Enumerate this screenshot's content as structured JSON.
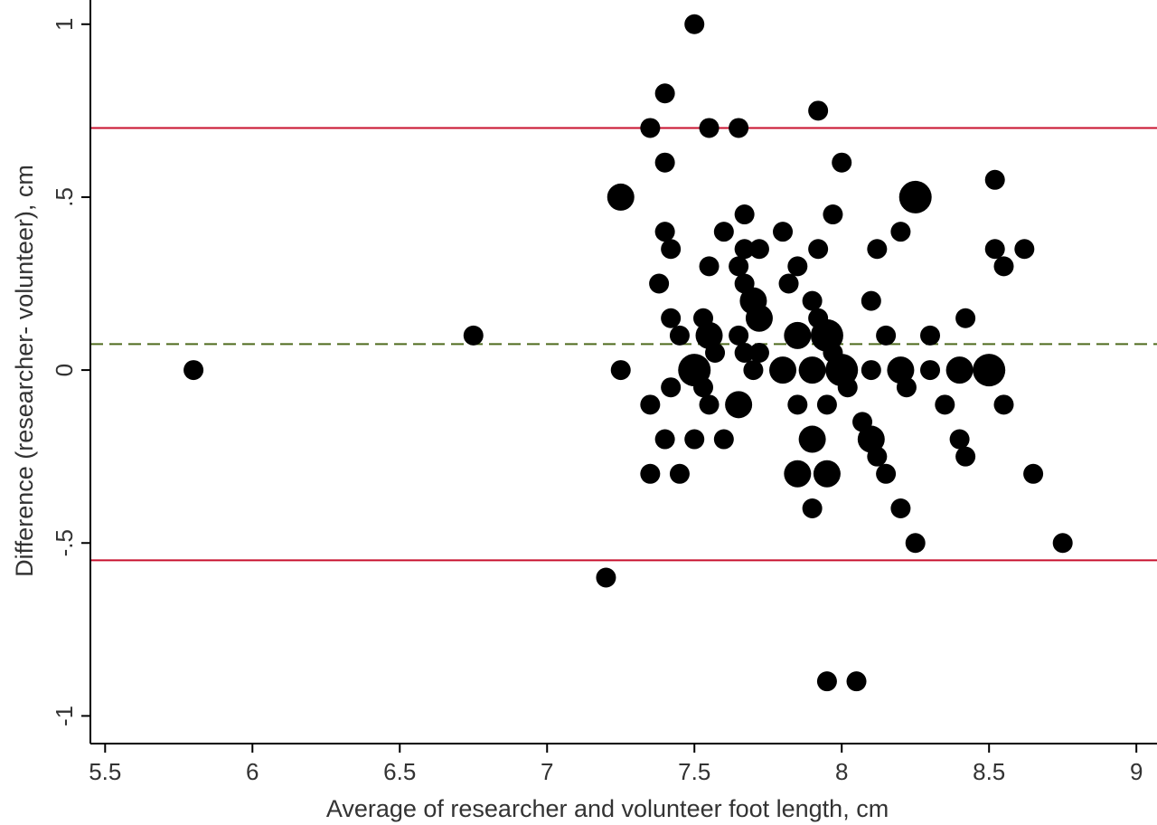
{
  "chart_data": {
    "type": "scatter",
    "title": "",
    "xlabel": "Average  of researcher  and volunteer  foot length, cm",
    "ylabel": "Difference  (researcher- volunteer), cm",
    "xlim": [
      5.45,
      9.07
    ],
    "ylim": [
      -1.08,
      1.07
    ],
    "x_ticks": [
      5.5,
      6,
      6.5,
      7,
      7.5,
      8,
      8.5,
      9
    ],
    "x_tick_labels": [
      "5.5",
      "6",
      "6.5",
      "7",
      "7.5",
      "8",
      "8.5",
      "9"
    ],
    "y_ticks": [
      1,
      0.5,
      0,
      -0.5,
      -1
    ],
    "y_tick_labels": [
      "1",
      ".5",
      "0",
      "-.5",
      "-1"
    ],
    "grid": false,
    "reference_lines": {
      "mean_difference": 0.075,
      "upper_limit_of_agreement": 0.7,
      "lower_limit_of_agreement": -0.55,
      "limit_color": "#c8102e",
      "mean_color": "#4f6b1e"
    },
    "point_color": "#000000",
    "points": [
      {
        "x": 5.8,
        "y": 0,
        "size": 1
      },
      {
        "x": 6.75,
        "y": 0.1,
        "size": 1
      },
      {
        "x": 7.2,
        "y": -0.6,
        "size": 1
      },
      {
        "x": 7.25,
        "y": 0.5,
        "size": 2
      },
      {
        "x": 7.25,
        "y": 0,
        "size": 1
      },
      {
        "x": 7.35,
        "y": 0.7,
        "size": 1
      },
      {
        "x": 7.35,
        "y": -0.1,
        "size": 1
      },
      {
        "x": 7.35,
        "y": -0.3,
        "size": 1
      },
      {
        "x": 7.38,
        "y": 0.25,
        "size": 1
      },
      {
        "x": 7.4,
        "y": 0.8,
        "size": 1
      },
      {
        "x": 7.4,
        "y": 0.6,
        "size": 1
      },
      {
        "x": 7.4,
        "y": 0.4,
        "size": 1
      },
      {
        "x": 7.4,
        "y": -0.2,
        "size": 1
      },
      {
        "x": 7.42,
        "y": 0.35,
        "size": 1
      },
      {
        "x": 7.42,
        "y": 0.15,
        "size": 1
      },
      {
        "x": 7.42,
        "y": -0.05,
        "size": 1
      },
      {
        "x": 7.45,
        "y": 0.1,
        "size": 1
      },
      {
        "x": 7.45,
        "y": -0.3,
        "size": 1
      },
      {
        "x": 7.5,
        "y": 1.0,
        "size": 1
      },
      {
        "x": 7.5,
        "y": 0,
        "size": 3
      },
      {
        "x": 7.5,
        "y": -0.2,
        "size": 1
      },
      {
        "x": 7.53,
        "y": 0.15,
        "size": 1
      },
      {
        "x": 7.53,
        "y": -0.05,
        "size": 1
      },
      {
        "x": 7.55,
        "y": 0.7,
        "size": 1
      },
      {
        "x": 7.55,
        "y": 0.3,
        "size": 1
      },
      {
        "x": 7.55,
        "y": 0.1,
        "size": 2
      },
      {
        "x": 7.55,
        "y": -0.1,
        "size": 1
      },
      {
        "x": 7.57,
        "y": 0.05,
        "size": 1
      },
      {
        "x": 7.6,
        "y": 0.4,
        "size": 1
      },
      {
        "x": 7.6,
        "y": -0.2,
        "size": 1
      },
      {
        "x": 7.65,
        "y": 0.7,
        "size": 1
      },
      {
        "x": 7.65,
        "y": 0.3,
        "size": 1
      },
      {
        "x": 7.65,
        "y": 0.1,
        "size": 1
      },
      {
        "x": 7.65,
        "y": -0.1,
        "size": 2
      },
      {
        "x": 7.67,
        "y": 0.45,
        "size": 1
      },
      {
        "x": 7.67,
        "y": 0.35,
        "size": 1
      },
      {
        "x": 7.67,
        "y": 0.25,
        "size": 1
      },
      {
        "x": 7.67,
        "y": 0.05,
        "size": 1
      },
      {
        "x": 7.7,
        "y": 0.2,
        "size": 2
      },
      {
        "x": 7.7,
        "y": 0,
        "size": 1
      },
      {
        "x": 7.72,
        "y": 0.35,
        "size": 1
      },
      {
        "x": 7.72,
        "y": 0.15,
        "size": 2
      },
      {
        "x": 7.72,
        "y": 0.05,
        "size": 1
      },
      {
        "x": 7.8,
        "y": 0.4,
        "size": 1
      },
      {
        "x": 7.8,
        "y": 0,
        "size": 2
      },
      {
        "x": 7.82,
        "y": 0.25,
        "size": 1
      },
      {
        "x": 7.85,
        "y": 0.3,
        "size": 1
      },
      {
        "x": 7.85,
        "y": 0.1,
        "size": 2
      },
      {
        "x": 7.85,
        "y": -0.1,
        "size": 1
      },
      {
        "x": 7.85,
        "y": -0.3,
        "size": 2
      },
      {
        "x": 7.9,
        "y": 0.2,
        "size": 1
      },
      {
        "x": 7.9,
        "y": 0,
        "size": 2
      },
      {
        "x": 7.9,
        "y": -0.2,
        "size": 2
      },
      {
        "x": 7.9,
        "y": -0.4,
        "size": 1
      },
      {
        "x": 7.92,
        "y": 0.75,
        "size": 1
      },
      {
        "x": 7.92,
        "y": 0.35,
        "size": 1
      },
      {
        "x": 7.92,
        "y": 0.15,
        "size": 1
      },
      {
        "x": 7.95,
        "y": 0.1,
        "size": 3
      },
      {
        "x": 7.95,
        "y": -0.1,
        "size": 1
      },
      {
        "x": 7.95,
        "y": -0.3,
        "size": 2
      },
      {
        "x": 7.95,
        "y": -0.9,
        "size": 1
      },
      {
        "x": 7.97,
        "y": 0.45,
        "size": 1
      },
      {
        "x": 7.97,
        "y": 0.05,
        "size": 1
      },
      {
        "x": 8.0,
        "y": 0.6,
        "size": 1
      },
      {
        "x": 8.0,
        "y": 0,
        "size": 3
      },
      {
        "x": 8.02,
        "y": -0.05,
        "size": 1
      },
      {
        "x": 8.05,
        "y": -0.9,
        "size": 1
      },
      {
        "x": 8.07,
        "y": -0.15,
        "size": 1
      },
      {
        "x": 8.1,
        "y": 0.2,
        "size": 1
      },
      {
        "x": 8.1,
        "y": 0,
        "size": 1
      },
      {
        "x": 8.1,
        "y": -0.2,
        "size": 2
      },
      {
        "x": 8.12,
        "y": 0.35,
        "size": 1
      },
      {
        "x": 8.12,
        "y": -0.25,
        "size": 1
      },
      {
        "x": 8.15,
        "y": 0.1,
        "size": 1
      },
      {
        "x": 8.15,
        "y": -0.3,
        "size": 1
      },
      {
        "x": 8.2,
        "y": 0.4,
        "size": 1
      },
      {
        "x": 8.2,
        "y": 0,
        "size": 2
      },
      {
        "x": 8.2,
        "y": -0.4,
        "size": 1
      },
      {
        "x": 8.22,
        "y": -0.05,
        "size": 1
      },
      {
        "x": 8.25,
        "y": 0.5,
        "size": 3
      },
      {
        "x": 8.25,
        "y": -0.5,
        "size": 1
      },
      {
        "x": 8.3,
        "y": 0.1,
        "size": 1
      },
      {
        "x": 8.3,
        "y": 0,
        "size": 1
      },
      {
        "x": 8.35,
        "y": -0.1,
        "size": 1
      },
      {
        "x": 8.4,
        "y": 0,
        "size": 2
      },
      {
        "x": 8.4,
        "y": -0.2,
        "size": 1
      },
      {
        "x": 8.42,
        "y": 0.15,
        "size": 1
      },
      {
        "x": 8.42,
        "y": -0.25,
        "size": 1
      },
      {
        "x": 8.5,
        "y": 0,
        "size": 3
      },
      {
        "x": 8.52,
        "y": 0.55,
        "size": 1
      },
      {
        "x": 8.52,
        "y": 0.35,
        "size": 1
      },
      {
        "x": 8.55,
        "y": 0.3,
        "size": 1
      },
      {
        "x": 8.55,
        "y": -0.1,
        "size": 1
      },
      {
        "x": 8.62,
        "y": 0.35,
        "size": 1
      },
      {
        "x": 8.65,
        "y": -0.3,
        "size": 1
      },
      {
        "x": 8.75,
        "y": -0.5,
        "size": 1
      }
    ]
  }
}
